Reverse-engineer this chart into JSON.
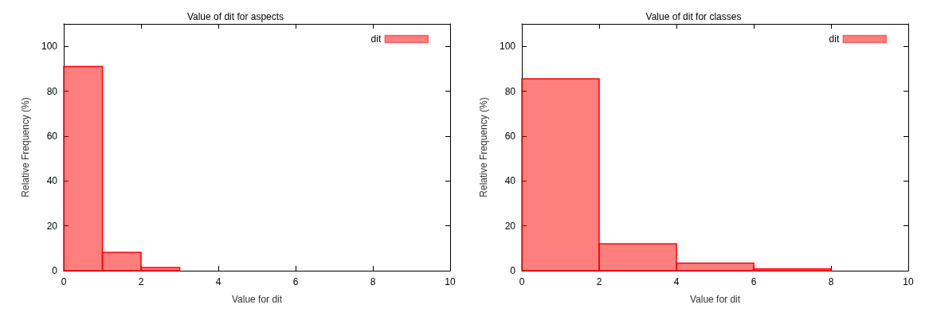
{
  "chart_data": [
    {
      "type": "histogram",
      "title": "Value of dit for aspects",
      "xlabel": "Value for dit",
      "ylabel": "Relative Frequency (%)",
      "bins": [
        0,
        1,
        2,
        3
      ],
      "series": [
        {
          "name": "dit",
          "color": "#ff0000",
          "values": [
            91,
            8.2,
            1.4
          ]
        }
      ],
      "xlim": [
        0,
        10
      ],
      "xticks": [
        0,
        2,
        4,
        6,
        8,
        10
      ],
      "ylim": [
        0,
        110
      ],
      "yticks": [
        0,
        20,
        40,
        60,
        80,
        100
      ],
      "legend": "top right",
      "grid": false
    },
    {
      "type": "histogram",
      "title": "Value of dit for classes",
      "xlabel": "Value for dit",
      "ylabel": "Relative Frequency (%)",
      "bins": [
        0,
        2,
        4,
        6,
        8
      ],
      "series": [
        {
          "name": "dit",
          "color": "#ff0000",
          "values": [
            85.5,
            12,
            3.4,
            0.8
          ]
        }
      ],
      "xlim": [
        0,
        10
      ],
      "xticks": [
        0,
        2,
        4,
        6,
        8,
        10
      ],
      "ylim": [
        0,
        110
      ],
      "yticks": [
        0,
        20,
        40,
        60,
        80,
        100
      ],
      "legend": "top right",
      "grid": false
    }
  ]
}
